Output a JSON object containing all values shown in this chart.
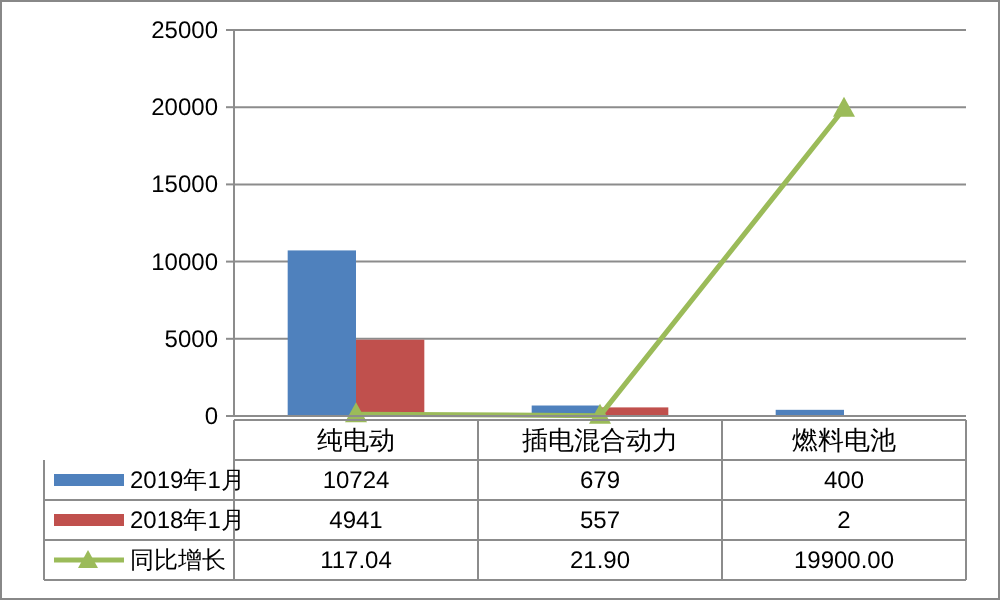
{
  "chart_data": {
    "type": "bar",
    "categories": [
      "纯电动",
      "插电混合动力",
      "燃料电池"
    ],
    "series": [
      {
        "name": "2019年1月",
        "color": "#4f81bd",
        "values": [
          10724,
          679,
          400
        ],
        "value_labels": [
          "10724",
          "679",
          "400"
        ]
      },
      {
        "name": "2018年1月",
        "color": "#c0504d",
        "values": [
          4941,
          557,
          2
        ],
        "value_labels": [
          "4941",
          "557",
          "2"
        ]
      },
      {
        "name": "同比增长",
        "type": "line",
        "color": "#9bbb59",
        "marker": "triangle",
        "values": [
          117.04,
          21.9,
          19900.0
        ],
        "value_labels": [
          "117.04",
          "21.90",
          "19900.00"
        ]
      }
    ],
    "ylim": [
      0,
      25000
    ],
    "yticks": [
      0,
      5000,
      10000,
      15000,
      20000,
      25000
    ],
    "grid": "y",
    "legend": "bottom"
  }
}
